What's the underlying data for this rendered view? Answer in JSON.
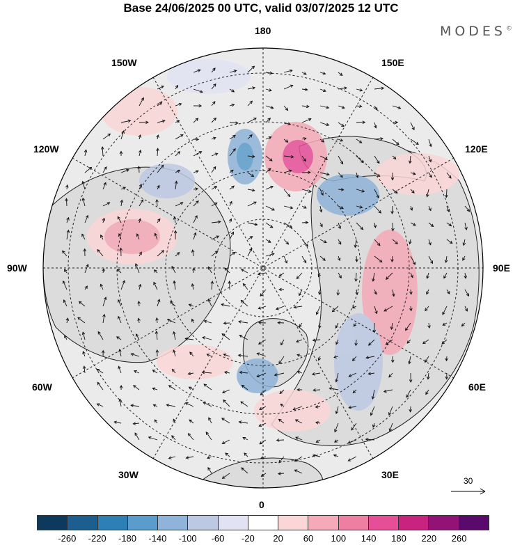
{
  "title": "Base 24/06/2025 00 UTC, valid 03/07/2025 12 UTC",
  "brand": "MODES",
  "brand_mark": "©",
  "longitude_labels": {
    "top": "180",
    "bottom": "0",
    "left": "90W",
    "right": "90E",
    "upper_left_1": "150W",
    "upper_left_2": "120W",
    "upper_right_1": "150E",
    "upper_right_2": "120E",
    "lower_left_1": "60W",
    "lower_left_2": "30W",
    "lower_right_1": "60E",
    "lower_right_2": "30E"
  },
  "reference_vector": {
    "label": "30"
  },
  "colorbar": {
    "colors": [
      "#0d3a5c",
      "#1c5f8f",
      "#2e7fb5",
      "#5a9ccb",
      "#8fb3d9",
      "#bdc9e4",
      "#e2e3f2",
      "#ffffff",
      "#fbd6d6",
      "#f5aab7",
      "#ef7ea3",
      "#e64f98",
      "#c8237f",
      "#931275",
      "#5a0a6a"
    ],
    "ticks": [
      "-260",
      "-220",
      "-180",
      "-140",
      "-100",
      "-60",
      "-20",
      "20",
      "60",
      "100",
      "140",
      "180",
      "220",
      "260"
    ]
  }
}
